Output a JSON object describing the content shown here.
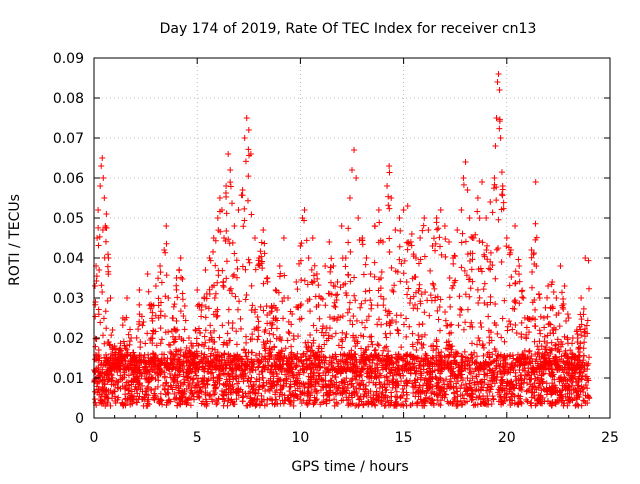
{
  "chart_data": {
    "type": "scatter",
    "title": "Day 174 of 2019, Rate Of TEC Index for receiver cn13",
    "xlabel": "GPS time / hours",
    "ylabel": "ROTI / TECUs",
    "xlim": [
      0,
      25
    ],
    "ylim": [
      0,
      0.09
    ],
    "x_ticks": [
      "0",
      "5",
      "10",
      "15",
      "20",
      "25"
    ],
    "y_ticks": [
      "0",
      "0.01",
      "0.02",
      "0.03",
      "0.04",
      "0.05",
      "0.06",
      "0.07",
      "0.08",
      "0.09"
    ],
    "x_tick_values": [
      0,
      5,
      10,
      15,
      20,
      25
    ],
    "y_tick_values": [
      0,
      0.01,
      0.02,
      0.03,
      0.04,
      0.05,
      0.06,
      0.07,
      0.08,
      0.09
    ],
    "grid": true,
    "marker": "+",
    "color": "#ff0000",
    "series": [
      {
        "points": [
          [
            0.0,
            0.009
          ],
          [
            0.05,
            0.033
          ],
          [
            0.1,
            0.038
          ],
          [
            0.15,
            0.045
          ],
          [
            0.2,
            0.052
          ],
          [
            0.25,
            0.037
          ],
          [
            0.3,
            0.058
          ],
          [
            0.35,
            0.063
          ],
          [
            0.4,
            0.065
          ],
          [
            0.45,
            0.06
          ],
          [
            0.5,
            0.055
          ],
          [
            0.55,
            0.048
          ],
          [
            0.6,
            0.051
          ],
          [
            0.7,
            0.04
          ],
          [
            0.8,
            0.03
          ],
          [
            0.9,
            0.022
          ],
          [
            1.0,
            0.018
          ],
          [
            1.2,
            0.016
          ],
          [
            1.4,
            0.025
          ],
          [
            1.6,
            0.03
          ],
          [
            1.8,
            0.02
          ],
          [
            2.0,
            0.015
          ],
          [
            2.2,
            0.032
          ],
          [
            2.4,
            0.024
          ],
          [
            2.6,
            0.036
          ],
          [
            2.8,
            0.028
          ],
          [
            3.0,
            0.033
          ],
          [
            3.2,
            0.038
          ],
          [
            3.4,
            0.042
          ],
          [
            3.5,
            0.048
          ],
          [
            3.6,
            0.03
          ],
          [
            3.8,
            0.025
          ],
          [
            4.0,
            0.035
          ],
          [
            4.2,
            0.04
          ],
          [
            4.4,
            0.028
          ],
          [
            4.6,
            0.02
          ],
          [
            4.8,
            0.018
          ],
          [
            5.0,
            0.032
          ],
          [
            5.2,
            0.027
          ],
          [
            5.4,
            0.037
          ],
          [
            5.6,
            0.04
          ],
          [
            5.8,
            0.045
          ],
          [
            6.0,
            0.05
          ],
          [
            6.1,
            0.055
          ],
          [
            6.2,
            0.052
          ],
          [
            6.3,
            0.045
          ],
          [
            6.4,
            0.058
          ],
          [
            6.5,
            0.066
          ],
          [
            6.6,
            0.062
          ],
          [
            6.8,
            0.048
          ],
          [
            7.0,
            0.052
          ],
          [
            7.2,
            0.057
          ],
          [
            7.3,
            0.07
          ],
          [
            7.4,
            0.075
          ],
          [
            7.5,
            0.072
          ],
          [
            7.6,
            0.066
          ],
          [
            7.8,
            0.045
          ],
          [
            8.0,
            0.04
          ],
          [
            8.2,
            0.047
          ],
          [
            8.4,
            0.035
          ],
          [
            8.6,
            0.028
          ],
          [
            8.8,
            0.032
          ],
          [
            9.0,
            0.038
          ],
          [
            9.2,
            0.045
          ],
          [
            9.4,
            0.03
          ],
          [
            9.6,
            0.026
          ],
          [
            9.8,
            0.034
          ],
          [
            10.0,
            0.043
          ],
          [
            10.1,
            0.05
          ],
          [
            10.2,
            0.052
          ],
          [
            10.4,
            0.04
          ],
          [
            10.6,
            0.045
          ],
          [
            10.8,
            0.036
          ],
          [
            11.0,
            0.03
          ],
          [
            11.2,
            0.038
          ],
          [
            11.4,
            0.044
          ],
          [
            11.6,
            0.038
          ],
          [
            11.8,
            0.034
          ],
          [
            12.0,
            0.048
          ],
          [
            12.2,
            0.04
          ],
          [
            12.4,
            0.055
          ],
          [
            12.5,
            0.062
          ],
          [
            12.6,
            0.067
          ],
          [
            12.7,
            0.06
          ],
          [
            12.8,
            0.05
          ],
          [
            13.0,
            0.045
          ],
          [
            13.2,
            0.04
          ],
          [
            13.4,
            0.036
          ],
          [
            13.6,
            0.048
          ],
          [
            13.8,
            0.052
          ],
          [
            14.0,
            0.044
          ],
          [
            14.2,
            0.058
          ],
          [
            14.3,
            0.063
          ],
          [
            14.4,
            0.055
          ],
          [
            14.6,
            0.047
          ],
          [
            14.8,
            0.05
          ],
          [
            15.0,
            0.052
          ],
          [
            15.2,
            0.053
          ],
          [
            15.4,
            0.046
          ],
          [
            15.6,
            0.04
          ],
          [
            15.8,
            0.045
          ],
          [
            16.0,
            0.05
          ],
          [
            16.2,
            0.047
          ],
          [
            16.4,
            0.043
          ],
          [
            16.6,
            0.05
          ],
          [
            16.8,
            0.052
          ],
          [
            17.0,
            0.048
          ],
          [
            17.2,
            0.044
          ],
          [
            17.4,
            0.04
          ],
          [
            17.6,
            0.047
          ],
          [
            17.8,
            0.052
          ],
          [
            17.9,
            0.06
          ],
          [
            18.0,
            0.064
          ],
          [
            18.1,
            0.057
          ],
          [
            18.2,
            0.05
          ],
          [
            18.4,
            0.045
          ],
          [
            18.6,
            0.055
          ],
          [
            18.8,
            0.059
          ],
          [
            19.0,
            0.05
          ],
          [
            19.2,
            0.054
          ],
          [
            19.4,
            0.06
          ],
          [
            19.45,
            0.068
          ],
          [
            19.5,
            0.075
          ],
          [
            19.55,
            0.084
          ],
          [
            19.6,
            0.086
          ],
          [
            19.65,
            0.082
          ],
          [
            19.7,
            0.07
          ],
          [
            19.8,
            0.058
          ],
          [
            20.0,
            0.045
          ],
          [
            20.2,
            0.042
          ],
          [
            20.4,
            0.048
          ],
          [
            20.6,
            0.038
          ],
          [
            20.8,
            0.03
          ],
          [
            21.0,
            0.025
          ],
          [
            21.2,
            0.042
          ],
          [
            21.4,
            0.059
          ],
          [
            21.6,
            0.03
          ],
          [
            21.8,
            0.025
          ],
          [
            22.0,
            0.033
          ],
          [
            22.2,
            0.034
          ],
          [
            22.4,
            0.03
          ],
          [
            22.6,
            0.038
          ],
          [
            22.8,
            0.033
          ],
          [
            23.0,
            0.025
          ],
          [
            23.2,
            0.02
          ],
          [
            23.4,
            0.022
          ],
          [
            23.6,
            0.03
          ],
          [
            23.8,
            0.04
          ]
        ]
      }
    ]
  }
}
